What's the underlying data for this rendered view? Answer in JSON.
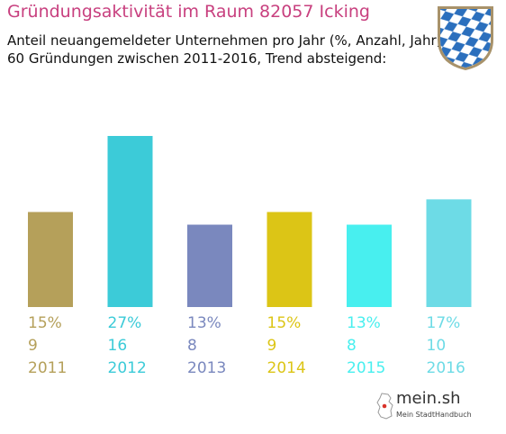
{
  "header": {
    "title": "Gründungsaktivität im Raum 82057 Icking",
    "subtitle_line1": "Anteil neuangemeldeter Unternehmen pro Jahr (%, Anzahl, Jahr)",
    "subtitle_line2": "60 Gründungen zwischen 2011-2016, Trend absteigend:"
  },
  "crest": {
    "icon": "bavarian-coat-of-arms-icon",
    "colors": [
      "#2b6fbd",
      "#ffffff"
    ]
  },
  "brand": {
    "name": "mein.sh",
    "tagline": "Mein StadtHandbuch",
    "icon": "germany-map-icon"
  },
  "chart_data": {
    "type": "bar",
    "title": "Gründungsaktivität im Raum 82057 Icking",
    "categories": [
      "2011",
      "2012",
      "2013",
      "2014",
      "2015",
      "2016"
    ],
    "values": [
      15,
      27,
      13,
      15,
      13,
      17
    ],
    "value_labels": [
      "15%",
      "27%",
      "13%",
      "15%",
      "13%",
      "17%"
    ],
    "counts": [
      9,
      16,
      8,
      9,
      8,
      10
    ],
    "count_labels": [
      "9",
      "16",
      "8",
      "9",
      "8",
      "10"
    ],
    "unit": "%",
    "colors": [
      "#b5a05a",
      "#3ccbd8",
      "#7a88be",
      "#dcc516",
      "#48efef",
      "#6ddbe6"
    ],
    "ylim": [
      0,
      27
    ],
    "grid": false,
    "legend": "none"
  }
}
